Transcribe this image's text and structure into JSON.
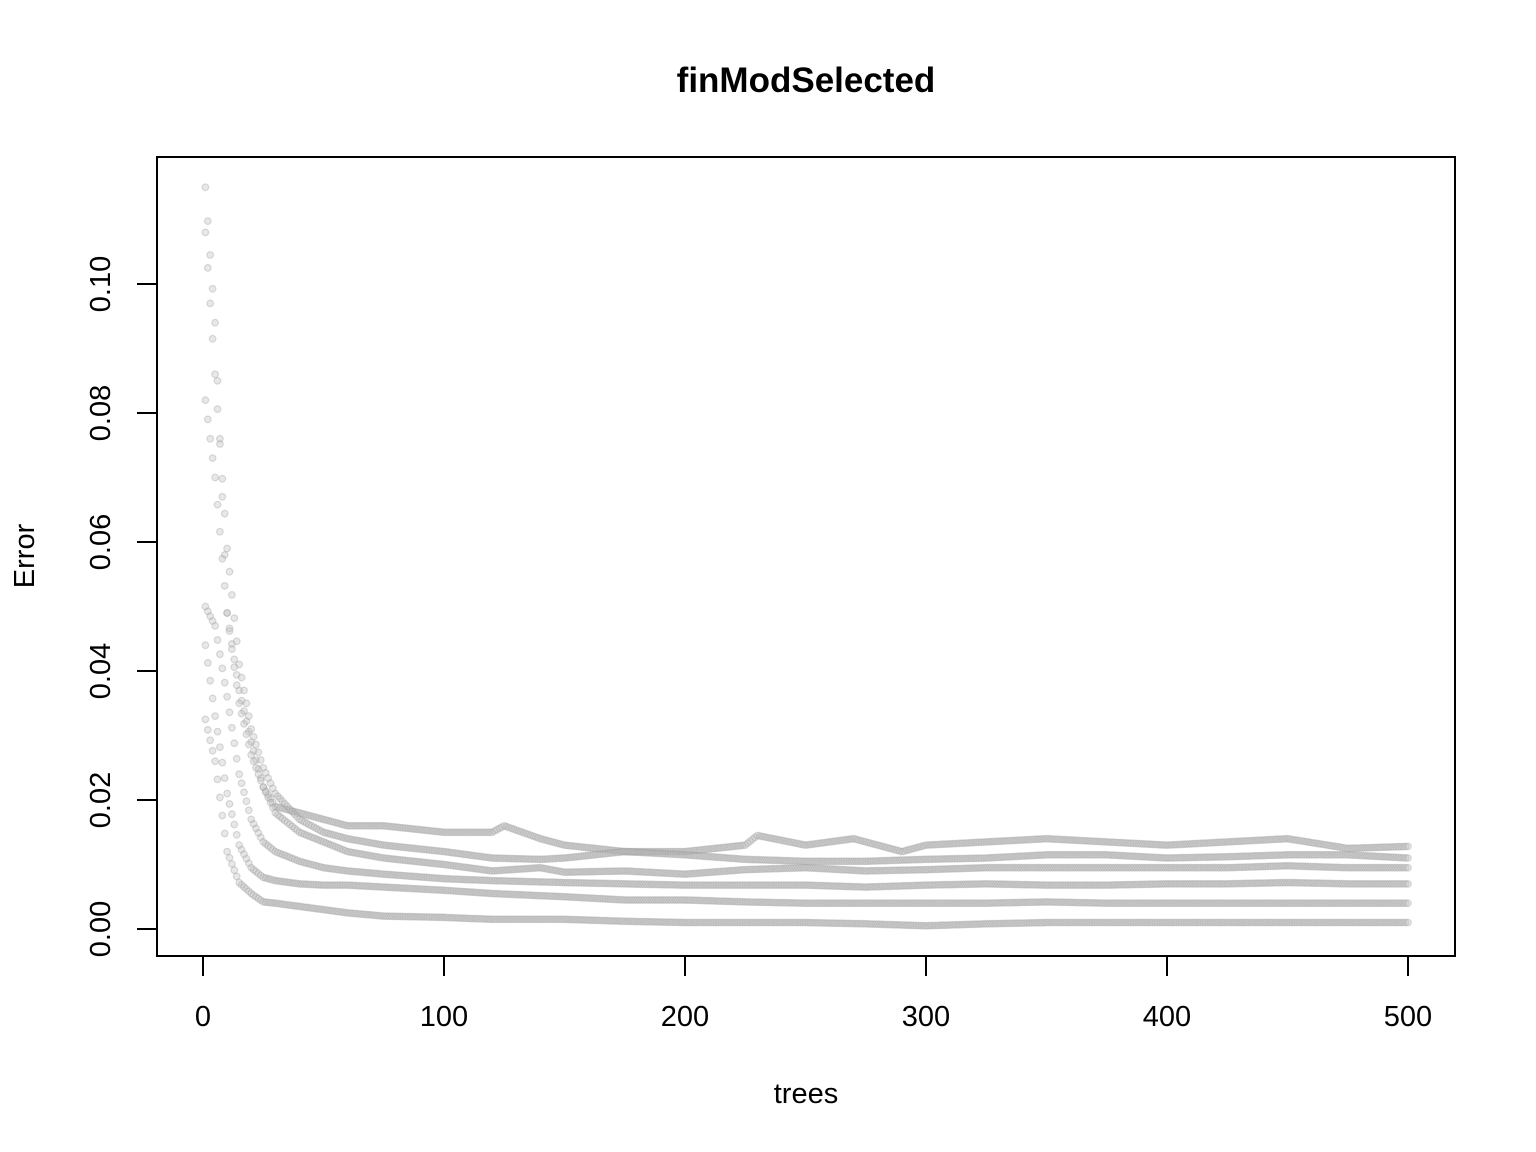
{
  "chart_data": {
    "type": "scatter",
    "title": "finModSelected",
    "xlabel": "trees",
    "ylabel": "Error",
    "xlim": [
      0,
      500
    ],
    "ylim": [
      0,
      0.115
    ],
    "x_ticks": [
      0,
      100,
      200,
      300,
      400,
      500
    ],
    "x_tick_labels": [
      "0",
      "100",
      "200",
      "300",
      "400",
      "500"
    ],
    "y_ticks": [
      0.0,
      0.02,
      0.04,
      0.06,
      0.08,
      0.1
    ],
    "y_tick_labels": [
      "0.00",
      "0.02",
      "0.04",
      "0.06",
      "0.08",
      "0.10"
    ],
    "grid": false,
    "legend": "none",
    "point_color": "#bdbdbd",
    "series": [
      {
        "x": [
          1,
          5,
          10,
          15,
          20,
          25,
          30,
          40,
          50,
          60,
          75,
          100,
          120,
          125,
          140,
          150,
          175,
          200,
          225,
          230,
          250,
          270,
          290,
          300,
          325,
          350,
          375,
          400,
          425,
          450,
          475,
          500
        ],
        "values": [
          0.115,
          0.094,
          0.049,
          0.037,
          0.029,
          0.022,
          0.019,
          0.018,
          0.017,
          0.016,
          0.016,
          0.015,
          0.015,
          0.016,
          0.014,
          0.013,
          0.012,
          0.012,
          0.013,
          0.0145,
          0.013,
          0.014,
          0.012,
          0.013,
          0.0135,
          0.014,
          0.0135,
          0.013,
          0.0135,
          0.014,
          0.0125,
          0.0128
        ]
      },
      {
        "x": [
          1,
          5,
          10,
          15,
          20,
          25,
          30,
          40,
          50,
          60,
          75,
          100,
          120,
          140,
          150,
          175,
          200,
          225,
          250,
          275,
          300,
          325,
          350,
          375,
          400,
          425,
          450,
          475,
          500
        ],
        "values": [
          0.108,
          0.086,
          0.059,
          0.041,
          0.031,
          0.025,
          0.021,
          0.017,
          0.015,
          0.014,
          0.013,
          0.012,
          0.011,
          0.0108,
          0.011,
          0.012,
          0.0115,
          0.0108,
          0.0105,
          0.0105,
          0.0108,
          0.011,
          0.0115,
          0.0115,
          0.011,
          0.0112,
          0.0115,
          0.0115,
          0.011
        ]
      },
      {
        "x": [
          1,
          5,
          10,
          15,
          20,
          25,
          30,
          40,
          50,
          60,
          75,
          100,
          120,
          140,
          150,
          175,
          200,
          225,
          250,
          275,
          300,
          325,
          350,
          375,
          400,
          425,
          450,
          475,
          500
        ],
        "values": [
          0.082,
          0.07,
          0.049,
          0.035,
          0.027,
          0.022,
          0.018,
          0.015,
          0.0135,
          0.012,
          0.011,
          0.01,
          0.009,
          0.0095,
          0.0088,
          0.009,
          0.0085,
          0.0092,
          0.0095,
          0.009,
          0.0092,
          0.0095,
          0.0095,
          0.0095,
          0.0095,
          0.0095,
          0.0098,
          0.0095,
          0.0095
        ]
      },
      {
        "x": [
          1,
          5,
          10,
          15,
          20,
          25,
          30,
          40,
          50,
          60,
          75,
          100,
          120,
          150,
          175,
          200,
          225,
          250,
          275,
          300,
          325,
          350,
          375,
          400,
          425,
          450,
          475,
          500
        ],
        "values": [
          0.05,
          0.047,
          0.036,
          0.024,
          0.017,
          0.0135,
          0.012,
          0.0105,
          0.0095,
          0.009,
          0.0085,
          0.0078,
          0.0075,
          0.0072,
          0.007,
          0.0068,
          0.0068,
          0.0068,
          0.0065,
          0.0068,
          0.007,
          0.0068,
          0.0068,
          0.007,
          0.007,
          0.0072,
          0.007,
          0.007
        ]
      },
      {
        "x": [
          1,
          5,
          10,
          15,
          20,
          25,
          30,
          40,
          50,
          60,
          75,
          100,
          120,
          150,
          175,
          200,
          225,
          250,
          275,
          300,
          325,
          350,
          375,
          400,
          425,
          450,
          475,
          500
        ],
        "values": [
          0.044,
          0.033,
          0.021,
          0.013,
          0.0095,
          0.008,
          0.0075,
          0.007,
          0.0068,
          0.0068,
          0.0065,
          0.006,
          0.0055,
          0.005,
          0.0045,
          0.0045,
          0.0042,
          0.004,
          0.004,
          0.004,
          0.004,
          0.0042,
          0.004,
          0.004,
          0.004,
          0.004,
          0.004,
          0.004
        ]
      },
      {
        "x": [
          1,
          5,
          10,
          15,
          20,
          25,
          30,
          40,
          50,
          60,
          75,
          100,
          120,
          150,
          175,
          200,
          225,
          250,
          275,
          300,
          325,
          350,
          375,
          400,
          425,
          450,
          475,
          500
        ],
        "values": [
          0.0325,
          0.026,
          0.012,
          0.0072,
          0.0055,
          0.0042,
          0.004,
          0.0035,
          0.003,
          0.0025,
          0.002,
          0.0018,
          0.0015,
          0.0015,
          0.0012,
          0.001,
          0.001,
          0.001,
          0.0008,
          0.0005,
          0.0008,
          0.001,
          0.001,
          0.001,
          0.001,
          0.001,
          0.001,
          0.001
        ]
      }
    ]
  }
}
